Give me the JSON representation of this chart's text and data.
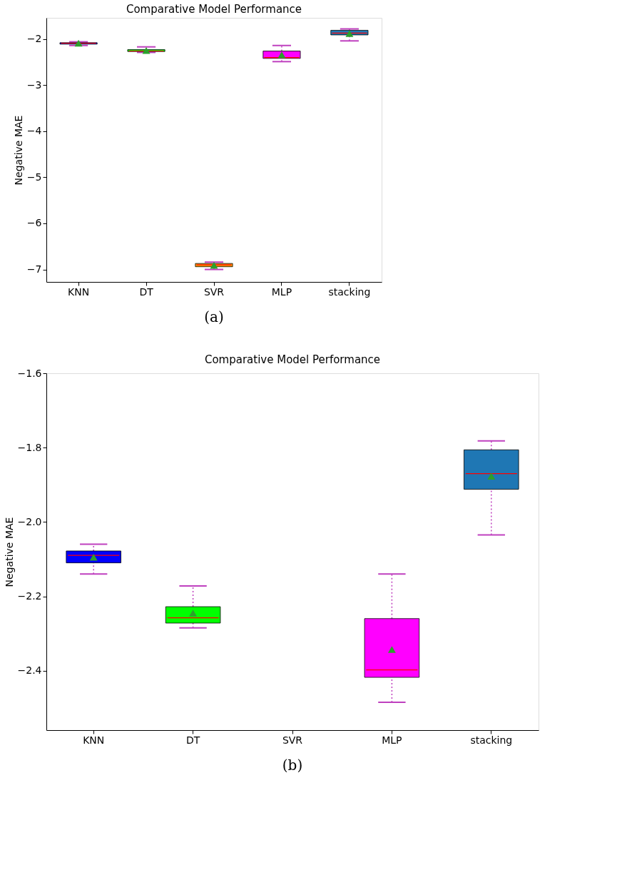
{
  "chart_data": [
    {
      "type": "box",
      "title": "Comparative Model Performance",
      "ylabel": "Negative MAE",
      "categories": [
        "KNN",
        "DT",
        "SVR",
        "MLP",
        "stacking"
      ],
      "colors": [
        "#0000ff",
        "#00ff00",
        "#ffa500",
        "#ff00ff",
        "#1f77b4"
      ],
      "boxes": [
        {
          "low": -2.14,
          "q1": -2.11,
          "median": -2.09,
          "q3": -2.08,
          "high": -2.06,
          "mean": -2.09
        },
        {
          "low": -2.29,
          "q1": -2.27,
          "median": -2.26,
          "q3": -2.23,
          "high": -2.17,
          "mean": -2.25
        },
        {
          "low": -7.0,
          "q1": -6.94,
          "median": -6.9,
          "q3": -6.87,
          "high": -6.84,
          "mean": -6.91
        },
        {
          "low": -2.49,
          "q1": -2.42,
          "median": -2.4,
          "q3": -2.26,
          "high": -2.14,
          "mean": -2.34
        },
        {
          "low": -2.04,
          "q1": -1.91,
          "median": -1.87,
          "q3": -1.81,
          "high": -1.78,
          "mean": -1.88
        }
      ],
      "ylim": [
        -7.27,
        -1.54
      ],
      "yticks": [
        -7,
        -6,
        -5,
        -4,
        -3,
        -2
      ],
      "annotations": [
        "(a)"
      ]
    },
    {
      "type": "box",
      "title": "Comparative Model Performance",
      "ylabel": "Negative MAE",
      "categories": [
        "KNN",
        "DT",
        "SVR",
        "MLP",
        "stacking"
      ],
      "colors": [
        "#0000ff",
        "#00ff00",
        "#ffa500",
        "#ff00ff",
        "#1f77b4"
      ],
      "boxes": [
        {
          "low": -2.14,
          "q1": -2.11,
          "median": -2.09,
          "q3": -2.078,
          "high": -2.06,
          "mean": -2.095
        },
        {
          "low": -2.285,
          "q1": -2.272,
          "median": -2.258,
          "q3": -2.228,
          "high": -2.172,
          "mean": -2.245
        },
        null,
        {
          "low": -2.485,
          "q1": -2.418,
          "median": -2.398,
          "q3": -2.26,
          "high": -2.14,
          "mean": -2.343
        },
        {
          "low": -2.035,
          "q1": -1.912,
          "median": -1.87,
          "q3": -1.806,
          "high": -1.782,
          "mean": -1.877
        }
      ],
      "ylim": [
        -2.56,
        -1.6
      ],
      "yticks": [
        -2.4,
        -2.2,
        {
          "value": -2.0,
          "label": "−2.0"
        },
        -1.8,
        -1.6
      ],
      "annotations": [
        "(b)"
      ]
    }
  ]
}
